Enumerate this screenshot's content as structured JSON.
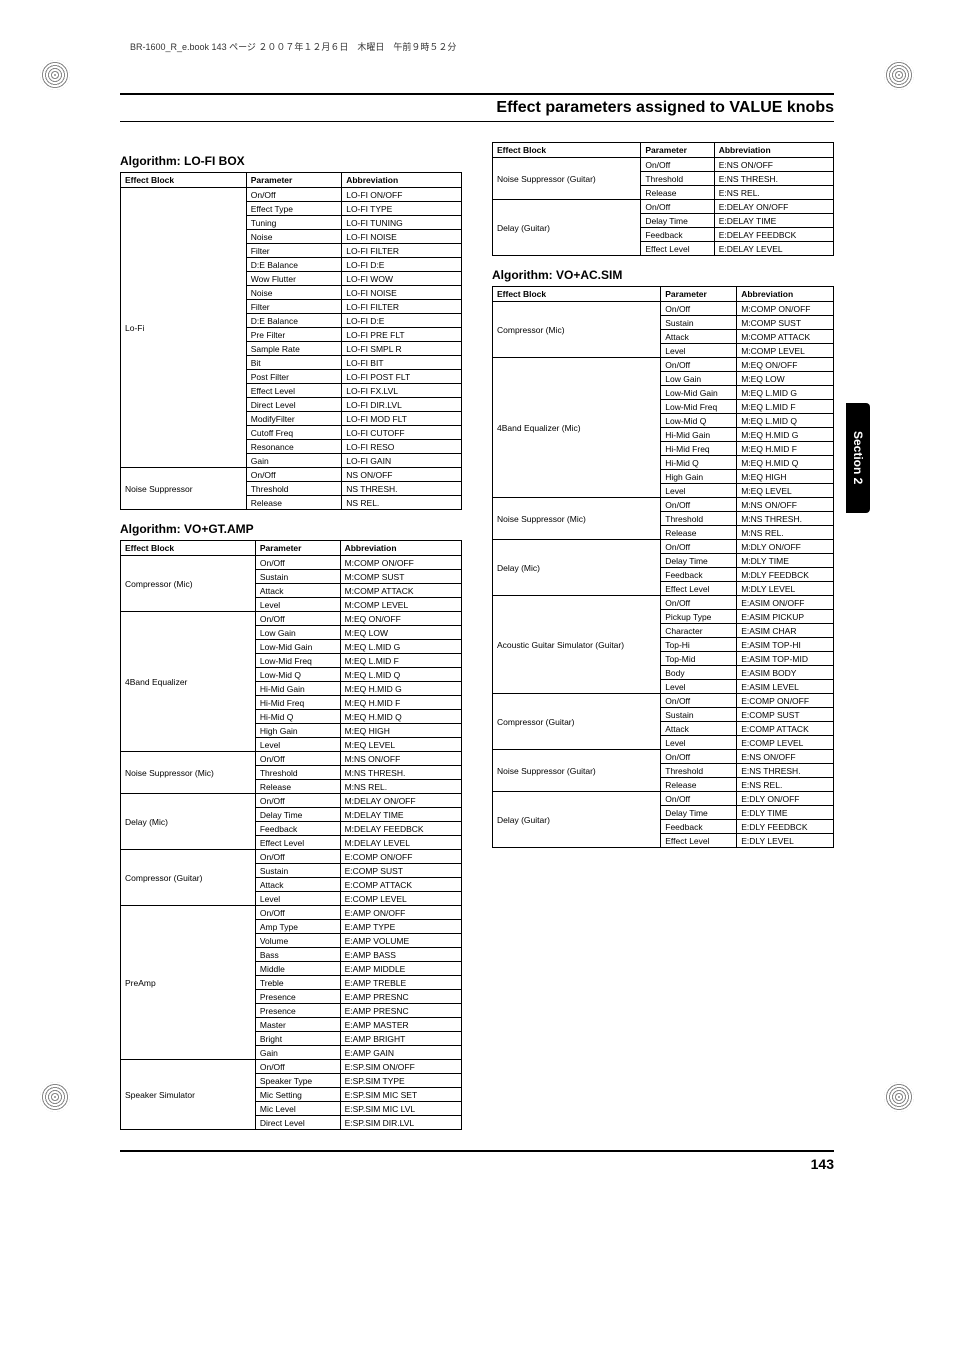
{
  "header_note": "BR-1600_R_e.book 143 ページ ２００７年１２月６日　木曜日　午前９時５２分",
  "page_title": "Effect parameters assigned to VALUE knobs",
  "section_tab": "Section 2",
  "page_number": "143",
  "table_headers": {
    "block": "Effect Block",
    "param": "Parameter",
    "abbr": "Abbreviation"
  },
  "tables": {
    "lofi": {
      "heading": "Algorithm: LO-FI BOX",
      "blocks": [
        {
          "name": "Lo-Fi",
          "rows": [
            [
              "On/Off",
              "LO-FI  ON/OFF"
            ],
            [
              "Effect Type",
              "LO-FI  TYPE"
            ],
            [
              "Tuning",
              "LO-FI  TUNING"
            ],
            [
              "Noise",
              "LO-FI  NOISE"
            ],
            [
              "Filter",
              "LO-FI  FILTER"
            ],
            [
              "D:E Balance",
              "LO-FI  D:E"
            ],
            [
              "Wow Flutter",
              "LO-FI  WOW"
            ],
            [
              "Noise",
              "LO-FI  NOISE"
            ],
            [
              "Filter",
              "LO-FI  FILTER"
            ],
            [
              "D:E Balance",
              "LO-FI  D:E"
            ],
            [
              "Pre Filter",
              "LO-FI  PRE FLT"
            ],
            [
              "Sample Rate",
              "LO-FI  SMPL R"
            ],
            [
              "Bit",
              "LO-FI  BIT"
            ],
            [
              "Post Filter",
              "LO-FI  POST FLT"
            ],
            [
              "Effect Level",
              "LO-FI  FX.LVL"
            ],
            [
              "Direct Level",
              "LO-FI  DIR.LVL"
            ],
            [
              "ModifyFilter",
              "LO-FI  MOD FLT"
            ],
            [
              "Cutoff Freq",
              "LO-FI  CUTOFF"
            ],
            [
              "Resonance",
              "LO-FI  RESO"
            ],
            [
              "Gain",
              "LO-FI  GAIN"
            ]
          ]
        },
        {
          "name": "Noise Suppressor",
          "rows": [
            [
              "On/Off",
              "NS  ON/OFF"
            ],
            [
              "Threshold",
              "NS  THRESH."
            ],
            [
              "Release",
              "NS  REL."
            ]
          ]
        }
      ]
    },
    "vogtamp": {
      "heading": "Algorithm: VO+GT.AMP",
      "blocks": [
        {
          "name": "Compressor (Mic)",
          "rows": [
            [
              "On/Off",
              "M:COMP  ON/OFF"
            ],
            [
              "Sustain",
              "M:COMP  SUST"
            ],
            [
              "Attack",
              "M:COMP  ATTACK"
            ],
            [
              "Level",
              "M:COMP  LEVEL"
            ]
          ]
        },
        {
          "name": "4Band Equalizer",
          "rows": [
            [
              "On/Off",
              "M:EQ  ON/OFF"
            ],
            [
              "Low Gain",
              "M:EQ  LOW"
            ],
            [
              "Low-Mid Gain",
              "M:EQ  L.MID G"
            ],
            [
              "Low-Mid Freq",
              "M:EQ  L.MID F"
            ],
            [
              "Low-Mid Q",
              "M:EQ  L.MID Q"
            ],
            [
              "Hi-Mid Gain",
              "M:EQ  H.MID G"
            ],
            [
              "Hi-Mid Freq",
              "M:EQ  H.MID F"
            ],
            [
              "Hi-Mid Q",
              "M:EQ  H.MID Q"
            ],
            [
              "High Gain",
              "M:EQ  HIGH"
            ],
            [
              "Level",
              "M:EQ  LEVEL"
            ]
          ]
        },
        {
          "name": "Noise Suppressor (Mic)",
          "rows": [
            [
              "On/Off",
              "M:NS  ON/OFF"
            ],
            [
              "Threshold",
              "M:NS  THRESH."
            ],
            [
              "Release",
              "M:NS  REL."
            ]
          ]
        },
        {
          "name": "Delay (Mic)",
          "rows": [
            [
              "On/Off",
              "M:DELAY  ON/OFF"
            ],
            [
              "Delay Time",
              "M:DELAY  TIME"
            ],
            [
              "Feedback",
              "M:DELAY  FEEDBCK"
            ],
            [
              "Effect Level",
              "M:DELAY  LEVEL"
            ]
          ]
        },
        {
          "name": "Compressor (Guitar)",
          "rows": [
            [
              "On/Off",
              "E:COMP  ON/OFF"
            ],
            [
              "Sustain",
              "E:COMP  SUST"
            ],
            [
              "Attack",
              "E:COMP  ATTACK"
            ],
            [
              "Level",
              "E:COMP  LEVEL"
            ]
          ]
        },
        {
          "name": "PreAmp",
          "rows": [
            [
              "On/Off",
              "E:AMP  ON/OFF"
            ],
            [
              "Amp Type",
              "E:AMP  TYPE"
            ],
            [
              "Volume",
              "E:AMP  VOLUME"
            ],
            [
              "Bass",
              "E:AMP  BASS"
            ],
            [
              "Middle",
              "E:AMP  MIDDLE"
            ],
            [
              "Treble",
              "E:AMP  TREBLE"
            ],
            [
              "Presence",
              "E:AMP  PRESNC"
            ],
            [
              "Presence",
              "E:AMP  PRESNC"
            ],
            [
              "Master",
              "E:AMP  MASTER"
            ],
            [
              "Bright",
              "E:AMP  BRIGHT"
            ],
            [
              "Gain",
              "E:AMP  GAIN"
            ]
          ]
        },
        {
          "name": "Speaker Simulator",
          "rows": [
            [
              "On/Off",
              "E:SP.SIM  ON/OFF"
            ],
            [
              "Speaker Type",
              "E:SP.SIM  TYPE"
            ],
            [
              "Mic Setting",
              "E:SP.SIM  MIC SET"
            ],
            [
              "Mic Level",
              "E:SP.SIM  MIC LVL"
            ],
            [
              "Direct Level",
              "E:SP.SIM  DIR.LVL"
            ]
          ]
        }
      ]
    },
    "vogtamp_cont": {
      "blocks": [
        {
          "name": "Noise Suppressor (Guitar)",
          "rows": [
            [
              "On/Off",
              "E:NS  ON/OFF"
            ],
            [
              "Threshold",
              "E:NS  THRESH."
            ],
            [
              "Release",
              "E:NS  REL."
            ]
          ]
        },
        {
          "name": "Delay (Guitar)",
          "rows": [
            [
              "On/Off",
              "E:DELAY  ON/OFF"
            ],
            [
              "Delay Time",
              "E:DELAY  TIME"
            ],
            [
              "Feedback",
              "E:DELAY  FEEDBCK"
            ],
            [
              "Effect Level",
              "E:DELAY  LEVEL"
            ]
          ]
        }
      ]
    },
    "voacsim": {
      "heading": "Algorithm: VO+AC.SIM",
      "blocks": [
        {
          "name": "Compressor (Mic)",
          "rows": [
            [
              "On/Off",
              "M:COMP  ON/OFF"
            ],
            [
              "Sustain",
              "M:COMP  SUST"
            ],
            [
              "Attack",
              "M:COMP  ATTACK"
            ],
            [
              "Level",
              "M:COMP  LEVEL"
            ]
          ]
        },
        {
          "name": "4Band Equalizer (Mic)",
          "rows": [
            [
              "On/Off",
              "M:EQ  ON/OFF"
            ],
            [
              "Low Gain",
              "M:EQ  LOW"
            ],
            [
              "Low-Mid Gain",
              "M:EQ  L.MID G"
            ],
            [
              "Low-Mid Freq",
              "M:EQ  L.MID F"
            ],
            [
              "Low-Mid Q",
              "M:EQ  L.MID Q"
            ],
            [
              "Hi-Mid Gain",
              "M:EQ  H.MID G"
            ],
            [
              "Hi-Mid Freq",
              "M:EQ  H.MID F"
            ],
            [
              "Hi-Mid Q",
              "M:EQ  H.MID Q"
            ],
            [
              "High Gain",
              "M:EQ  HIGH"
            ],
            [
              "Level",
              "M:EQ  LEVEL"
            ]
          ]
        },
        {
          "name": "Noise Suppressor (Mic)",
          "rows": [
            [
              "On/Off",
              "M:NS  ON/OFF"
            ],
            [
              "Threshold",
              "M:NS  THRESH."
            ],
            [
              "Release",
              "M:NS  REL."
            ]
          ]
        },
        {
          "name": "Delay (Mic)",
          "rows": [
            [
              "On/Off",
              "M:DLY  ON/OFF"
            ],
            [
              "Delay Time",
              "M:DLY  TIME"
            ],
            [
              "Feedback",
              "M:DLY  FEEDBCK"
            ],
            [
              "Effect Level",
              "M:DLY  LEVEL"
            ]
          ]
        },
        {
          "name": "Acoustic Guitar Simulator (Guitar)",
          "rows": [
            [
              "On/Off",
              "E:ASIM  ON/OFF"
            ],
            [
              "Pickup Type",
              "E:ASIM  PICKUP"
            ],
            [
              "Character",
              "E:ASIM  CHAR"
            ],
            [
              "Top-Hi",
              "E:ASIM  TOP-HI"
            ],
            [
              "Top-Mid",
              "E:ASIM  TOP-MID"
            ],
            [
              "Body",
              "E:ASIM  BODY"
            ],
            [
              "Level",
              "E:ASIM  LEVEL"
            ]
          ]
        },
        {
          "name": "Compressor (Guitar)",
          "rows": [
            [
              "On/Off",
              "E:COMP  ON/OFF"
            ],
            [
              "Sustain",
              "E:COMP  SUST"
            ],
            [
              "Attack",
              "E:COMP  ATTACK"
            ],
            [
              "Level",
              "E:COMP  LEVEL"
            ]
          ]
        },
        {
          "name": "Noise Suppressor (Guitar)",
          "rows": [
            [
              "On/Off",
              "E:NS  ON/OFF"
            ],
            [
              "Threshold",
              "E:NS  THRESH."
            ],
            [
              "Release",
              "E:NS  REL."
            ]
          ]
        },
        {
          "name": "Delay (Guitar)",
          "rows": [
            [
              "On/Off",
              "E:DLY  ON/OFF"
            ],
            [
              "Delay Time",
              "E:DLY  TIME"
            ],
            [
              "Feedback",
              "E:DLY  FEEDBCK"
            ],
            [
              "Effect Level",
              "E:DLY  LEVEL"
            ]
          ]
        }
      ]
    }
  }
}
